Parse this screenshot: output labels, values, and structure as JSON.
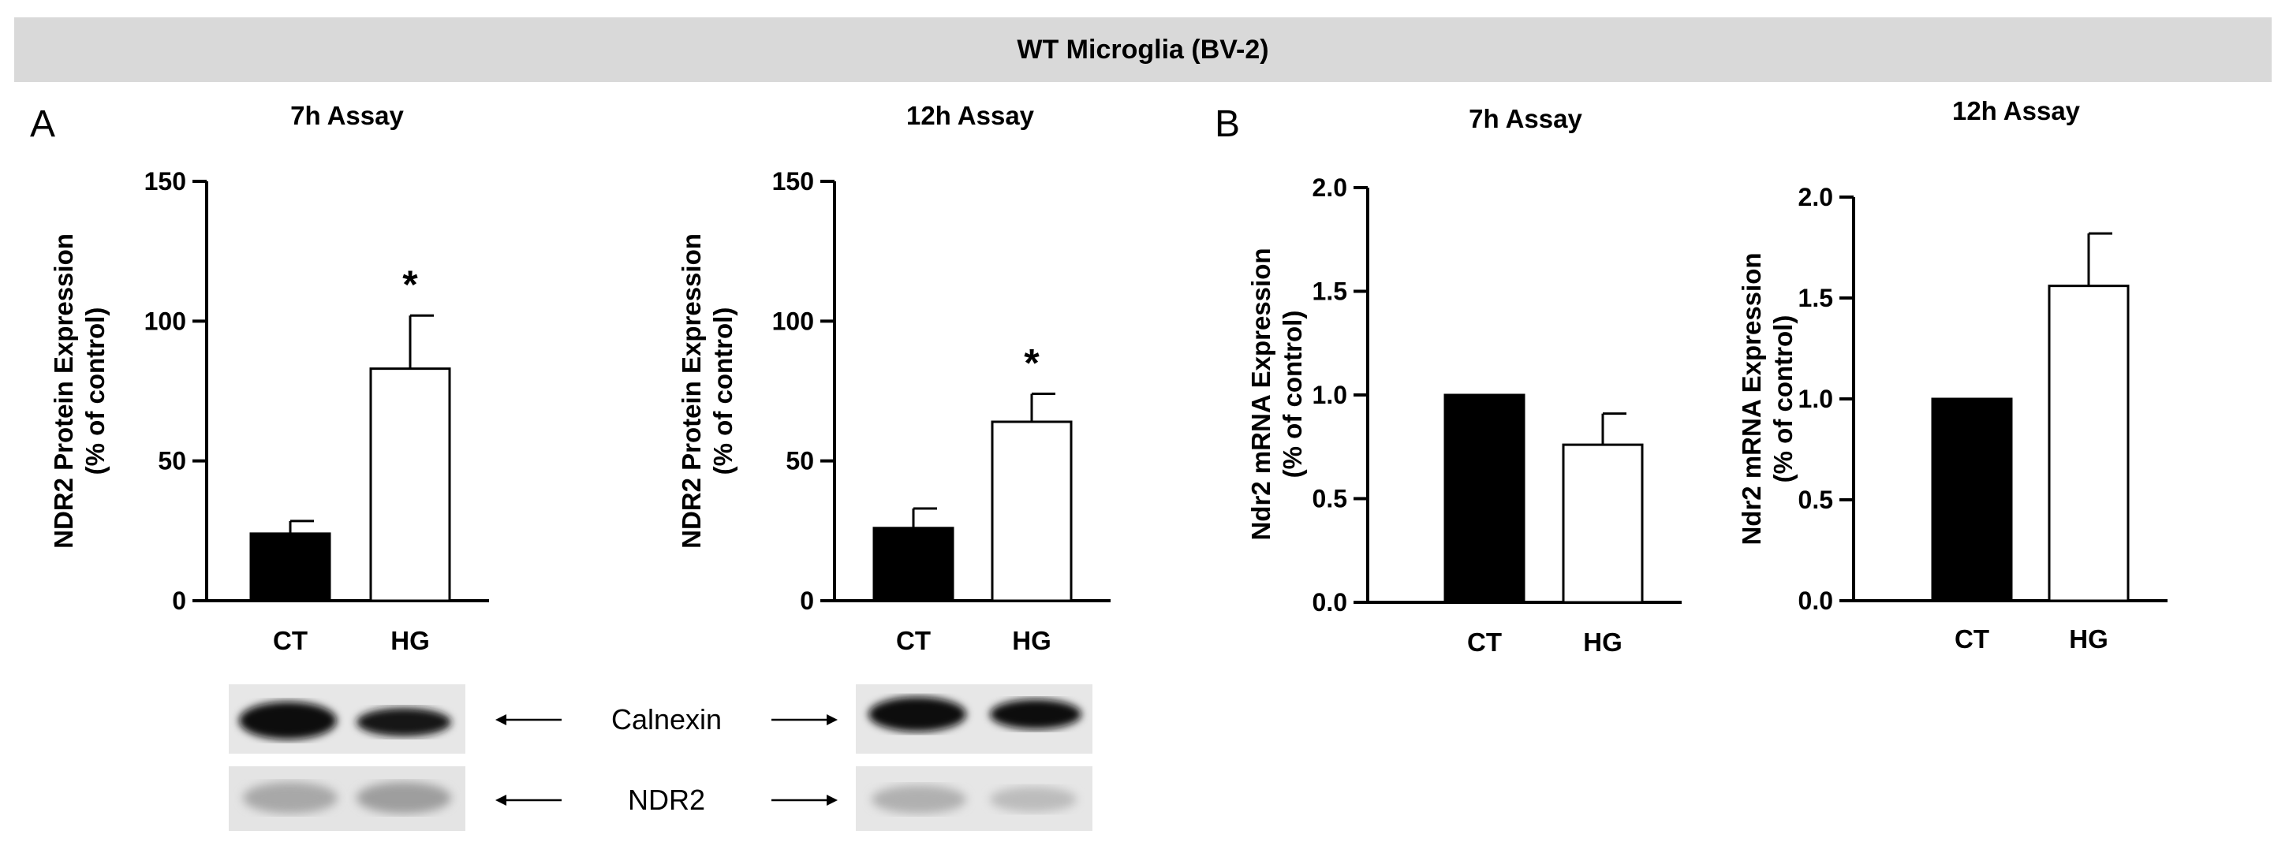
{
  "banner_title": "WT Microglia (BV-2)",
  "panels": {
    "a": "A",
    "b": "B"
  },
  "blot_labels": {
    "top": "Calnexin",
    "bottom": "NDR2"
  },
  "significance_marker": "*",
  "colors": {
    "ct_bar": "#000000",
    "hg_bar": "#ffffff",
    "banner": "#d9d9d9"
  },
  "chart_data": [
    {
      "type": "bar",
      "title": "7h Assay",
      "ylabel_lines": [
        "NDR2 Protein Expression",
        "(% of control)"
      ],
      "categories": [
        "CT",
        "HG"
      ],
      "values": [
        24,
        83
      ],
      "errors": [
        4.5,
        19
      ],
      "significance": [
        false,
        true
      ],
      "ylim": [
        0,
        150
      ],
      "yticks": [
        "0",
        "50",
        "100",
        "150"
      ]
    },
    {
      "type": "bar",
      "title": "12h Assay",
      "ylabel_lines": [
        "NDR2 Protein Expression",
        "(% of control)"
      ],
      "categories": [
        "CT",
        "HG"
      ],
      "values": [
        26,
        64
      ],
      "errors": [
        7,
        10
      ],
      "significance": [
        false,
        true
      ],
      "ylim": [
        0,
        150
      ],
      "yticks": [
        "0",
        "50",
        "100",
        "150"
      ]
    },
    {
      "type": "bar",
      "title": "7h Assay",
      "ylabel_lines": [
        "Ndr2 mRNA Expression",
        "(% of control)"
      ],
      "categories": [
        "CT",
        "HG"
      ],
      "values": [
        1.0,
        0.76
      ],
      "errors": [
        0,
        0.15
      ],
      "significance": [
        false,
        false
      ],
      "ylim": [
        0,
        2.0
      ],
      "yticks": [
        "0.0",
        "0.5",
        "1.0",
        "1.5",
        "2.0"
      ]
    },
    {
      "type": "bar",
      "title": "12h Assay",
      "ylabel_lines": [
        "Ndr2 mRNA Expression",
        "(% of control)"
      ],
      "categories": [
        "CT",
        "HG"
      ],
      "values": [
        1.0,
        1.56
      ],
      "errors": [
        0,
        0.26
      ],
      "significance": [
        false,
        false
      ],
      "ylim": [
        0,
        2.0
      ],
      "yticks": [
        "0.0",
        "0.5",
        "1.0",
        "1.5",
        "2.0"
      ]
    }
  ]
}
